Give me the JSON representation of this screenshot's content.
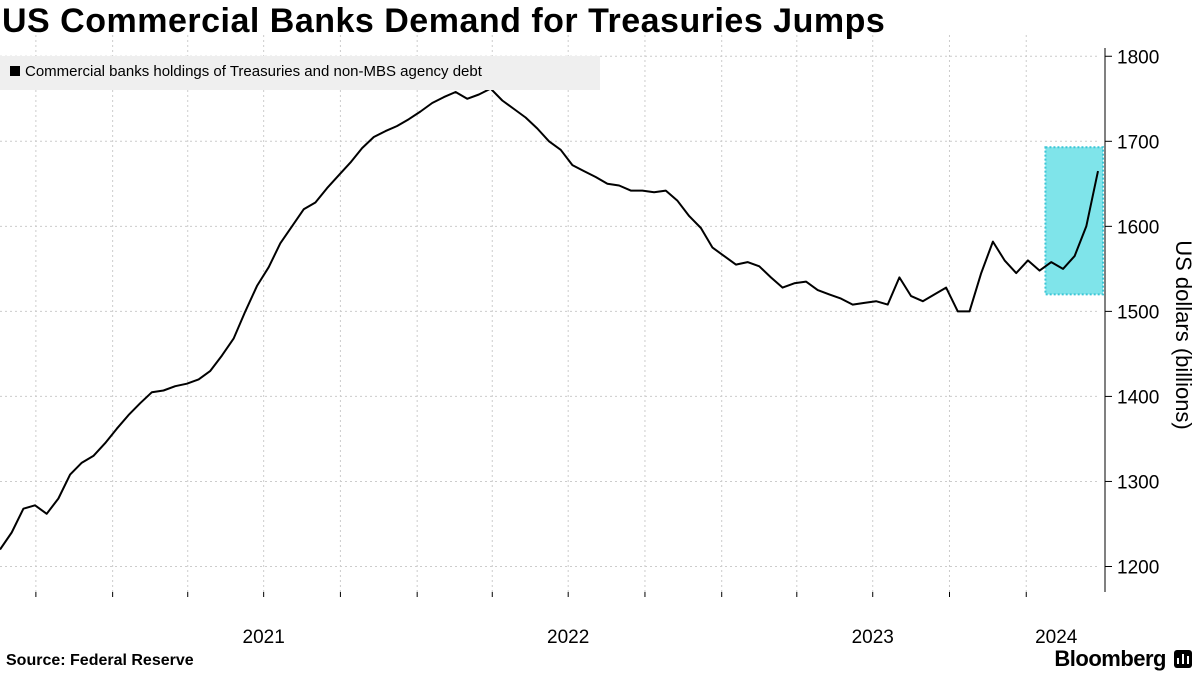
{
  "title": "US Commercial Banks Demand for Treasuries Jumps",
  "source": "Source: Federal Reserve",
  "brand": "Bloomberg",
  "icons": {
    "brand": "bloomberg-bars-icon"
  },
  "colors": {
    "line": "#000000",
    "grid": "#cccccc",
    "highlight_fill": "#7fe4ea",
    "highlight_border": "#3cc6d6",
    "legend_bg": "#efefef"
  },
  "chart_data": {
    "type": "line",
    "title": "US Commercial Banks Demand for Treasuries Jumps",
    "ylabel": "US dollars (billions)",
    "ylim": [
      1170,
      1825
    ],
    "yticks": [
      1200,
      1300,
      1400,
      1500,
      1600,
      1700,
      1800
    ],
    "x_range": [
      "2020-08-19",
      "2024-03-27"
    ],
    "xticks": [
      {
        "date": "2021-01-01",
        "label": "2021"
      },
      {
        "date": "2022-01-01",
        "label": "2022"
      },
      {
        "date": "2023-01-01",
        "label": "2023"
      },
      {
        "date": "2024-01-01",
        "label": "2024"
      }
    ],
    "grid": "dotted",
    "legend_position": "top-left",
    "series": [
      {
        "name": "Commercial banks holdings of Treasuries and non-MBS agency debt",
        "points": [
          [
            "2020-08-19",
            1220
          ],
          [
            "2020-09-02",
            1240
          ],
          [
            "2020-09-16",
            1268
          ],
          [
            "2020-09-30",
            1272
          ],
          [
            "2020-10-14",
            1262
          ],
          [
            "2020-10-28",
            1280
          ],
          [
            "2020-11-11",
            1308
          ],
          [
            "2020-11-25",
            1322
          ],
          [
            "2020-12-09",
            1330
          ],
          [
            "2020-12-23",
            1345
          ],
          [
            "2021-01-06",
            1362
          ],
          [
            "2021-01-20",
            1378
          ],
          [
            "2021-02-03",
            1392
          ],
          [
            "2021-02-17",
            1405
          ],
          [
            "2021-03-03",
            1407
          ],
          [
            "2021-03-17",
            1412
          ],
          [
            "2021-03-31",
            1415
          ],
          [
            "2021-04-14",
            1420
          ],
          [
            "2021-04-28",
            1430
          ],
          [
            "2021-05-12",
            1448
          ],
          [
            "2021-05-26",
            1468
          ],
          [
            "2021-06-09",
            1500
          ],
          [
            "2021-06-23",
            1530
          ],
          [
            "2021-07-07",
            1552
          ],
          [
            "2021-07-21",
            1580
          ],
          [
            "2021-08-04",
            1600
          ],
          [
            "2021-08-18",
            1620
          ],
          [
            "2021-09-01",
            1628
          ],
          [
            "2021-09-15",
            1645
          ],
          [
            "2021-09-29",
            1660
          ],
          [
            "2021-10-13",
            1675
          ],
          [
            "2021-10-27",
            1692
          ],
          [
            "2021-11-10",
            1705
          ],
          [
            "2021-11-24",
            1712
          ],
          [
            "2021-12-08",
            1718
          ],
          [
            "2021-12-22",
            1726
          ],
          [
            "2022-01-05",
            1735
          ],
          [
            "2022-01-19",
            1745
          ],
          [
            "2022-02-02",
            1752
          ],
          [
            "2022-02-16",
            1758
          ],
          [
            "2022-03-02",
            1750
          ],
          [
            "2022-03-16",
            1755
          ],
          [
            "2022-03-30",
            1762
          ],
          [
            "2022-04-13",
            1748
          ],
          [
            "2022-04-27",
            1738
          ],
          [
            "2022-05-11",
            1728
          ],
          [
            "2022-05-25",
            1715
          ],
          [
            "2022-06-08",
            1700
          ],
          [
            "2022-06-22",
            1690
          ],
          [
            "2022-07-06",
            1672
          ],
          [
            "2022-07-20",
            1665
          ],
          [
            "2022-08-03",
            1658
          ],
          [
            "2022-08-17",
            1650
          ],
          [
            "2022-08-31",
            1648
          ],
          [
            "2022-09-14",
            1642
          ],
          [
            "2022-09-28",
            1642
          ],
          [
            "2022-10-12",
            1640
          ],
          [
            "2022-10-26",
            1642
          ],
          [
            "2022-11-09",
            1630
          ],
          [
            "2022-11-23",
            1612
          ],
          [
            "2022-12-07",
            1598
          ],
          [
            "2022-12-21",
            1575
          ],
          [
            "2023-01-04",
            1565
          ],
          [
            "2023-01-18",
            1555
          ],
          [
            "2023-02-01",
            1558
          ],
          [
            "2023-02-15",
            1553
          ],
          [
            "2023-03-01",
            1540
          ],
          [
            "2023-03-15",
            1528
          ],
          [
            "2023-03-29",
            1533
          ],
          [
            "2023-04-12",
            1535
          ],
          [
            "2023-04-26",
            1525
          ],
          [
            "2023-05-10",
            1520
          ],
          [
            "2023-05-24",
            1515
          ],
          [
            "2023-06-07",
            1508
          ],
          [
            "2023-06-21",
            1510
          ],
          [
            "2023-07-05",
            1512
          ],
          [
            "2023-07-19",
            1508
          ],
          [
            "2023-08-02",
            1540
          ],
          [
            "2023-08-16",
            1518
          ],
          [
            "2023-08-30",
            1512
          ],
          [
            "2023-09-13",
            1520
          ],
          [
            "2023-09-27",
            1528
          ],
          [
            "2023-10-11",
            1500
          ],
          [
            "2023-10-25",
            1500
          ],
          [
            "2023-11-08",
            1545
          ],
          [
            "2023-11-22",
            1582
          ],
          [
            "2023-12-06",
            1560
          ],
          [
            "2023-12-20",
            1545
          ],
          [
            "2024-01-03",
            1560
          ],
          [
            "2024-01-17",
            1548
          ],
          [
            "2024-01-31",
            1558
          ],
          [
            "2024-02-14",
            1550
          ],
          [
            "2024-02-28",
            1565
          ],
          [
            "2024-03-13",
            1600
          ],
          [
            "2024-03-27",
            1665
          ]
        ]
      }
    ],
    "highlight": {
      "start": "2024-01-24",
      "end": "2024-04-02",
      "y_min": 1520,
      "y_max": 1693
    }
  }
}
